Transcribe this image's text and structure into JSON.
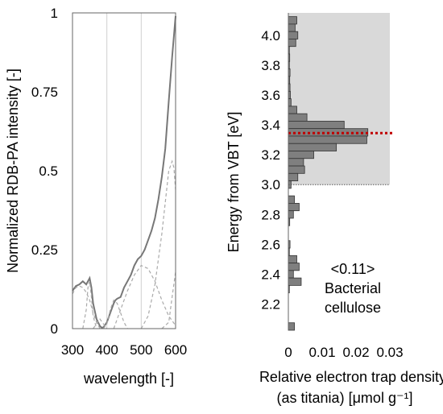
{
  "chart_data": [
    {
      "type": "line",
      "panel": "left",
      "ylabel": "Normalized RDB-PA intensity [-]",
      "xlabel": "wavelength [-]",
      "xlim": [
        300,
        600
      ],
      "ylim": [
        0,
        1
      ],
      "x_ticks": [
        "300",
        "400",
        "500",
        "600"
      ],
      "y_ticks": [
        "0",
        "0.25",
        "0.5",
        "0.75",
        "1"
      ],
      "x_tick_values": [
        300,
        400,
        500,
        600
      ],
      "y_tick_values": [
        0,
        0.25,
        0.5,
        0.75,
        1
      ],
      "vertical_gridlines_at": [
        400,
        500
      ],
      "series": [
        {
          "style": "solid",
          "color": "#777777",
          "x": [
            300,
            310,
            320,
            330,
            340,
            345,
            350,
            355,
            360,
            370,
            380,
            385,
            390,
            400,
            410,
            420,
            425,
            430,
            440,
            450,
            460,
            470,
            480,
            490,
            500,
            510,
            520,
            530,
            540,
            550,
            560,
            570,
            580,
            590,
            600
          ],
          "y": [
            0.12,
            0.135,
            0.14,
            0.15,
            0.14,
            0.15,
            0.16,
            0.13,
            0.08,
            0.03,
            0.008,
            0.003,
            0.004,
            0.02,
            0.05,
            0.08,
            0.09,
            0.095,
            0.1,
            0.13,
            0.15,
            0.17,
            0.2,
            0.22,
            0.23,
            0.25,
            0.28,
            0.31,
            0.35,
            0.41,
            0.48,
            0.57,
            0.72,
            0.86,
            0.99
          ]
        },
        {
          "style": "dashed",
          "color": "#aaaaaa",
          "x": [
            300,
            310,
            320,
            330,
            340,
            350,
            360,
            370,
            380
          ],
          "y": [
            0.11,
            0.13,
            0.135,
            0.13,
            0.115,
            0.09,
            0.05,
            0.02,
            0.0
          ]
        },
        {
          "style": "dashed",
          "color": "#aaaaaa",
          "x": [
            330,
            340,
            345,
            350,
            355,
            360,
            370
          ],
          "y": [
            0.0,
            0.06,
            0.13,
            0.15,
            0.1,
            0.04,
            0.0
          ]
        },
        {
          "style": "dashed",
          "color": "#aaaaaa",
          "x": [
            360,
            370,
            380,
            390,
            400
          ],
          "y": [
            0.0,
            0.015,
            0.03,
            0.015,
            0.0
          ]
        },
        {
          "style": "dashed",
          "color": "#aaaaaa",
          "x": [
            390,
            400,
            410,
            420,
            430,
            440,
            450,
            460
          ],
          "y": [
            0.0,
            0.015,
            0.06,
            0.09,
            0.08,
            0.05,
            0.02,
            0.0
          ]
        },
        {
          "style": "dashed",
          "color": "#aaaaaa",
          "x": [
            420,
            440,
            460,
            480,
            500,
            520,
            540,
            560,
            580,
            600
          ],
          "y": [
            0.0,
            0.06,
            0.12,
            0.17,
            0.2,
            0.19,
            0.15,
            0.09,
            0.04,
            0.01
          ]
        },
        {
          "style": "dashed",
          "color": "#aaaaaa",
          "x": [
            500,
            520,
            540,
            560,
            570,
            580,
            590,
            595,
            600
          ],
          "y": [
            0.0,
            0.04,
            0.14,
            0.3,
            0.4,
            0.5,
            0.53,
            0.51,
            0.44
          ]
        },
        {
          "style": "dashed",
          "color": "#aaaaaa",
          "x": [
            560,
            580,
            590,
            600
          ],
          "y": [
            0.0,
            0.02,
            0.1,
            0.18
          ]
        }
      ]
    },
    {
      "type": "bar",
      "orientation": "horizontal",
      "panel": "right",
      "ylabel": "Energy from VBT [eV]",
      "xlabel_line1": "Relative electron trap density",
      "xlabel_line2": "(as titania) [μmol g⁻¹]",
      "annotation_line1": "<0.11>",
      "annotation_line2": "Bacterial",
      "annotation_line3": "cellulose",
      "xlim": [
        0,
        0.03
      ],
      "ylim": [
        2.025,
        4.15
      ],
      "x_ticks": [
        "0",
        "0.01",
        "0.02",
        "0.03"
      ],
      "x_tick_values": [
        0,
        0.01,
        0.02,
        0.03
      ],
      "y_ticks": [
        "2.2",
        "2.4",
        "2.6",
        "2.8",
        "3.0",
        "3.2",
        "3.4",
        "3.6",
        "3.8",
        "4.0"
      ],
      "y_tick_values": [
        2.2,
        2.4,
        2.6,
        2.8,
        3.0,
        3.2,
        3.4,
        3.6,
        3.8,
        4.0
      ],
      "shaded_region": {
        "from": 3.0,
        "to": 4.15,
        "color": "#d9d9d9"
      },
      "threshold_line": {
        "value": 3.0,
        "style": "dotted",
        "color": "#555555"
      },
      "marker_line": {
        "value": 3.345,
        "style": "dotted",
        "color": "#c00000"
      },
      "bar_color": "#7f7f7f",
      "bar_width": 0.05,
      "energies": [
        4.1,
        4.05,
        4.0,
        3.95,
        3.9,
        3.85,
        3.8,
        3.75,
        3.7,
        3.65,
        3.6,
        3.55,
        3.5,
        3.45,
        3.4,
        3.35,
        3.3,
        3.25,
        3.2,
        3.15,
        3.1,
        3.05,
        3.0,
        2.95,
        2.9,
        2.85,
        2.8,
        2.75,
        2.7,
        2.65,
        2.6,
        2.55,
        2.5,
        2.45,
        2.4,
        2.35,
        2.3,
        2.25,
        2.2,
        2.15,
        2.1,
        2.05
      ],
      "values": [
        0.0025,
        0.002,
        0.0028,
        0.0022,
        0.0003,
        0.0004,
        0.0003,
        0.0005,
        0.0004,
        0.0005,
        0.0006,
        0.0008,
        0.0025,
        0.0055,
        0.0165,
        0.0235,
        0.0232,
        0.0142,
        0.0075,
        0.0045,
        0.0048,
        0.0028,
        0.0008,
        0.0,
        0.0018,
        0.0032,
        0.0015,
        0.0004,
        0.0,
        0.0,
        0.0005,
        0.0003,
        0.0025,
        0.0032,
        0.0015,
        0.0038,
        0.0003,
        0.0,
        0.0,
        0.0,
        0.0,
        0.0018
      ]
    }
  ]
}
